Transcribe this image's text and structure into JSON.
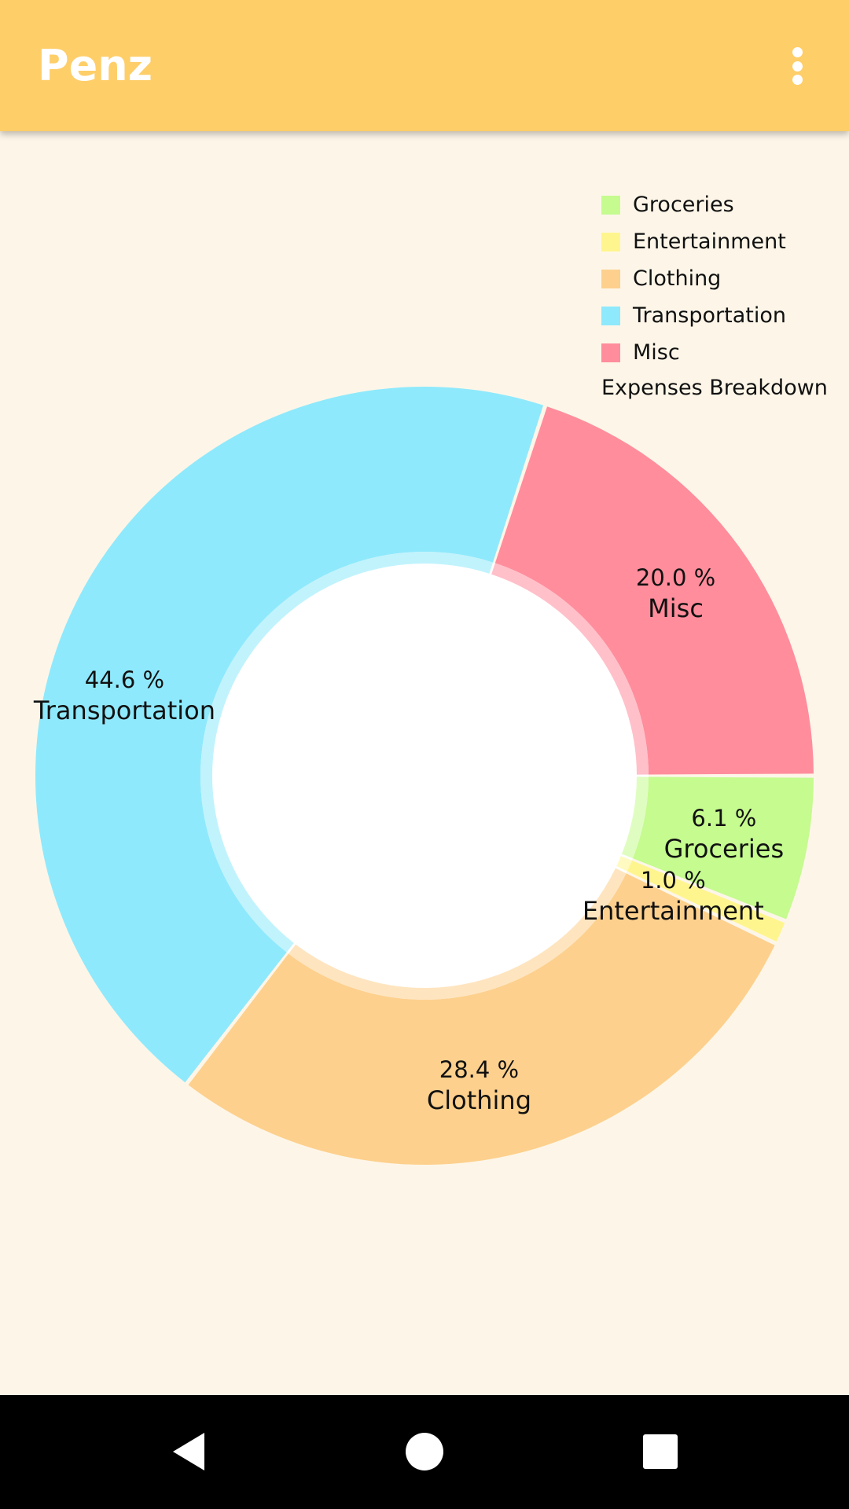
{
  "app": {
    "title": "Penz"
  },
  "toolbar": {
    "menu_icon": "more-vert-icon"
  },
  "chart_data": {
    "type": "pie",
    "variant": "donut",
    "description": "Expenses Breakdown",
    "legend_position": "top-right",
    "slices": [
      {
        "label": "Groceries",
        "value": 6.1,
        "value_label": "6.1 %",
        "color": "#C5FB8F"
      },
      {
        "label": "Entertainment",
        "value": 1.0,
        "value_label": "1.0 %",
        "color": "#FFF58E"
      },
      {
        "label": "Clothing",
        "value": 28.4,
        "value_label": "28.4 %",
        "color": "#FDD08D"
      },
      {
        "label": "Transportation",
        "value": 44.6,
        "value_label": "44.6 %",
        "color": "#8FE9FC"
      },
      {
        "label": "Misc",
        "value": 20.0,
        "value_label": "20.0 %",
        "color": "#FF8D9C"
      }
    ]
  },
  "colors": {
    "app_bar": "#FECE69",
    "background": "#FDF6E8",
    "nav_bar": "#000000"
  },
  "nav": {
    "back_icon": "back-icon",
    "home_icon": "home-icon",
    "recents_icon": "recents-icon"
  }
}
